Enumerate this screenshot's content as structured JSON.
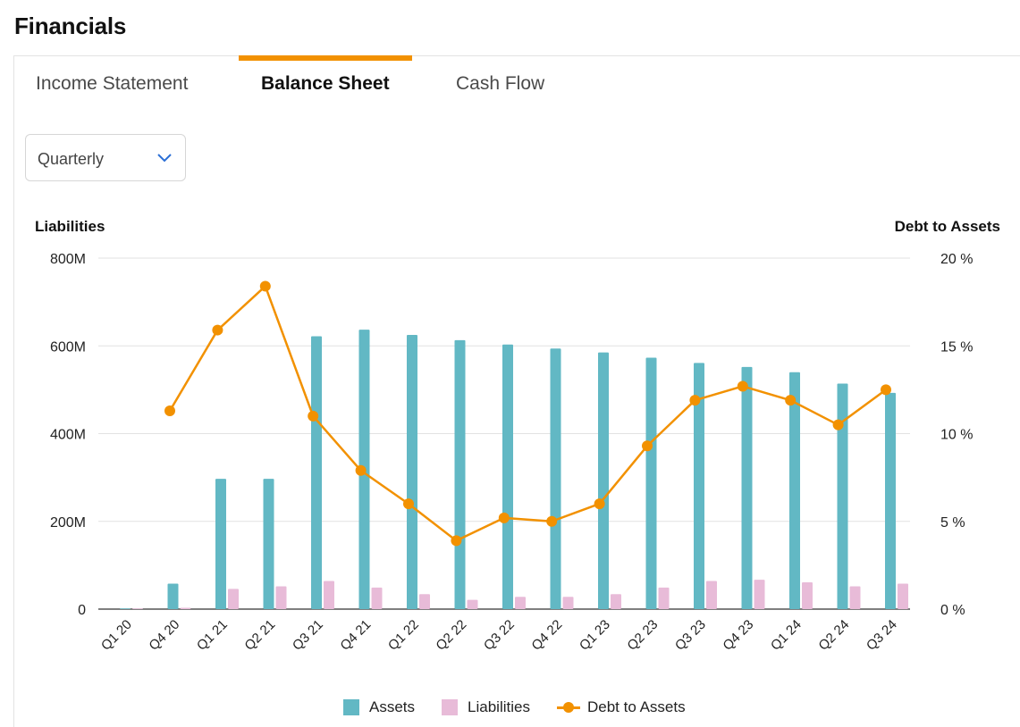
{
  "page": {
    "title": "Financials"
  },
  "tabs": [
    {
      "label": "Income Statement",
      "active": false
    },
    {
      "label": "Balance Sheet",
      "active": true
    },
    {
      "label": "Cash Flow",
      "active": false
    }
  ],
  "period_select": {
    "value": "Quarterly"
  },
  "colors": {
    "assets": "#62b8c4",
    "liabilities": "#e8bbd8",
    "ratio": "#f29100",
    "accent": "#f29100"
  },
  "chart_data": {
    "type": "bar",
    "left_axis_title": "Liabilities",
    "right_axis_title": "Debt to Assets",
    "categories": [
      "Q1 20",
      "Q4 20",
      "Q1 21",
      "Q2 21",
      "Q3 21",
      "Q4 21",
      "Q1 22",
      "Q2 22",
      "Q3 22",
      "Q4 22",
      "Q1 23",
      "Q2 23",
      "Q3 23",
      "Q4 23",
      "Q1 24",
      "Q2 24",
      "Q3 24"
    ],
    "y_left": {
      "ticks": [
        0,
        200,
        400,
        600,
        800
      ],
      "tick_labels": [
        "0",
        "200M",
        "400M",
        "600M",
        "800M"
      ],
      "range": [
        0,
        800
      ],
      "unit": "M"
    },
    "y_right": {
      "ticks": [
        0,
        5,
        10,
        15,
        20
      ],
      "tick_labels": [
        "0 %",
        "5 %",
        "10 %",
        "15 %",
        "20 %"
      ],
      "range": [
        0,
        20
      ],
      "unit": "%"
    },
    "series": [
      {
        "name": "Assets",
        "type": "bar",
        "axis": "left",
        "values": [
          0,
          58,
          297,
          297,
          622,
          637,
          625,
          613,
          603,
          594,
          585,
          573,
          561,
          552,
          540,
          514,
          493
        ]
      },
      {
        "name": "Liabilities",
        "type": "bar",
        "axis": "left",
        "values": [
          0,
          3,
          46,
          52,
          64,
          49,
          34,
          21,
          28,
          28,
          34,
          49,
          64,
          67,
          61,
          52,
          58
        ]
      },
      {
        "name": "Debt to Assets",
        "type": "line",
        "axis": "right",
        "values": [
          null,
          11.3,
          15.9,
          18.4,
          11.0,
          7.9,
          6.0,
          3.9,
          5.2,
          5.0,
          6.0,
          9.3,
          11.9,
          12.7,
          11.9,
          10.5,
          12.5
        ]
      }
    ],
    "legend": [
      "Assets",
      "Liabilities",
      "Debt to Assets"
    ],
    "grid": true
  }
}
